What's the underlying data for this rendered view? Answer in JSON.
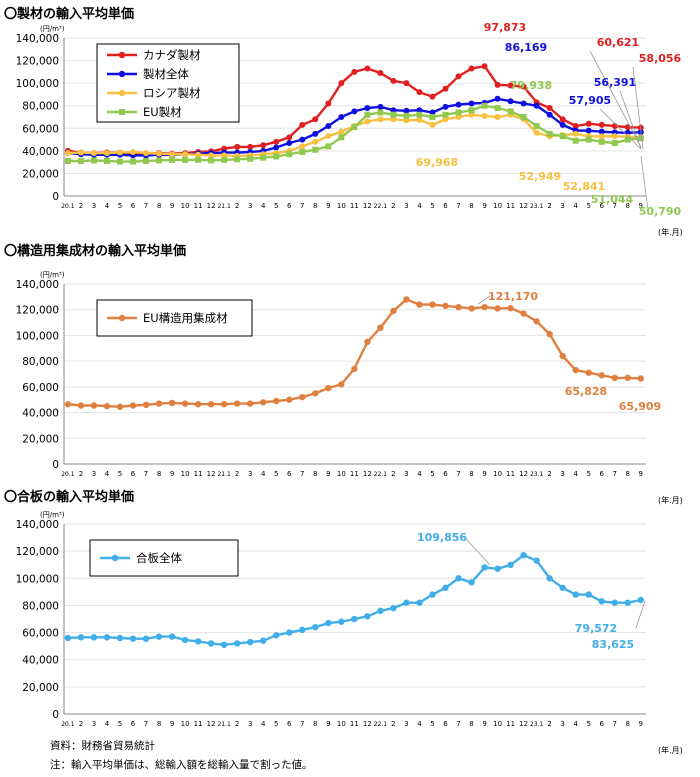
{
  "charts": [
    {
      "title": "〇製材の輸入平均単価"
    },
    {
      "title": "〇構造用集成材の輸入平均単価"
    },
    {
      "title": "〇合板の輸入平均単価"
    }
  ],
  "notes": {
    "source": "資料：財務省貿易統計",
    "note": "注：輸入平均単価は、総輸入額を総輸入量で割った値。"
  },
  "chart_data": [
    {
      "type": "line",
      "title": "〇製材の輸入平均単価",
      "ylabel": "(円/m³)",
      "xlabel": "(年.月)",
      "ylim": [
        0,
        140000
      ],
      "ytick_step": 20000,
      "categories": [
        "20.1",
        "2",
        "3",
        "4",
        "5",
        "6",
        "7",
        "8",
        "9",
        "10",
        "11",
        "12",
        "21.1",
        "2",
        "3",
        "4",
        "5",
        "6",
        "7",
        "8",
        "9",
        "10",
        "11",
        "12",
        "22.1",
        "2",
        "3",
        "4",
        "5",
        "6",
        "7",
        "8",
        "9",
        "10",
        "11",
        "12",
        "23.1",
        "2",
        "3",
        "4",
        "5",
        "6",
        "7",
        "8",
        "9"
      ],
      "legend_position": "top-left",
      "series": [
        {
          "name": "カナダ製材",
          "color": "#e02020",
          "values": [
            40000,
            38500,
            38000,
            38500,
            38500,
            37000,
            37500,
            38000,
            37500,
            38000,
            39000,
            39500,
            42000,
            43500,
            43500,
            45000,
            48000,
            52000,
            63000,
            68000,
            82000,
            100000,
            110000,
            113000,
            109000,
            102000,
            100000,
            92000,
            88000,
            95000,
            106000,
            113000,
            115000,
            98500,
            97873,
            97000,
            83000,
            78000,
            68000,
            62000,
            64000,
            63000,
            62000,
            61000,
            60621
          ]
        },
        {
          "name": "製材全体",
          "color": "#1010e0",
          "values": [
            38000,
            37000,
            36500,
            36500,
            36500,
            36000,
            36000,
            36500,
            36500,
            37000,
            37500,
            38000,
            38500,
            38500,
            39000,
            40000,
            43000,
            47000,
            50000,
            55000,
            62000,
            70000,
            75000,
            78000,
            79000,
            76000,
            75500,
            76000,
            74000,
            79000,
            81000,
            82000,
            82500,
            86169,
            84000,
            82000,
            80000,
            72000,
            63000,
            58000,
            57905,
            57000,
            56391,
            56000,
            56500
          ]
        },
        {
          "name": "ロシア製材",
          "color": "#f8c040",
          "values": [
            38000,
            38500,
            38000,
            38000,
            38500,
            39000,
            38000,
            37500,
            37000,
            37000,
            36500,
            36000,
            36000,
            35500,
            36000,
            37000,
            38000,
            40000,
            44000,
            48000,
            53000,
            57000,
            62000,
            66000,
            68000,
            68000,
            67000,
            67500,
            63000,
            68000,
            69968,
            72000,
            71000,
            70000,
            72000,
            68000,
            56000,
            52949,
            54000,
            55000,
            53000,
            52841,
            53000,
            52500,
            52000
          ]
        },
        {
          "name": "EU製材",
          "color": "#90c850",
          "values": [
            31000,
            31000,
            31500,
            31000,
            30500,
            30500,
            31000,
            31500,
            32000,
            32000,
            32000,
            31500,
            32000,
            32500,
            33000,
            34000,
            35000,
            37000,
            39000,
            41000,
            44000,
            52000,
            61000,
            72000,
            74000,
            72000,
            71000,
            72000,
            70000,
            72000,
            74000,
            76000,
            79938,
            78000,
            75000,
            70000,
            62000,
            55000,
            53000,
            49000,
            50000,
            48000,
            47000,
            50000,
            51044
          ]
        }
      ],
      "annotations": [
        {
          "text": "97,873",
          "color": "#e02020"
        },
        {
          "text": "86,169",
          "color": "#1010e0"
        },
        {
          "text": "79,938",
          "color": "#90c850"
        },
        {
          "text": "69,968",
          "color": "#f8c040"
        },
        {
          "text": "60,621",
          "color": "#e02020"
        },
        {
          "text": "58,056",
          "color": "#e02020"
        },
        {
          "text": "56,391",
          "color": "#1010e0"
        },
        {
          "text": "57,905",
          "color": "#1010e0"
        },
        {
          "text": "52,949",
          "color": "#f8c040"
        },
        {
          "text": "52,841",
          "color": "#f8c040"
        },
        {
          "text": "51,044",
          "color": "#90c850"
        },
        {
          "text": "50,790",
          "color": "#90c850"
        }
      ]
    },
    {
      "type": "line",
      "title": "〇構造用集成材の輸入平均単価",
      "ylabel": "(円/m³)",
      "xlabel": "(年.月)",
      "ylim": [
        0,
        140000
      ],
      "ytick_step": 20000,
      "categories": [
        "20.1",
        "2",
        "3",
        "4",
        "5",
        "6",
        "7",
        "8",
        "9",
        "10",
        "11",
        "12",
        "21.1",
        "2",
        "3",
        "4",
        "5",
        "6",
        "7",
        "8",
        "9",
        "10",
        "11",
        "12",
        "22.1",
        "2",
        "3",
        "4",
        "5",
        "6",
        "7",
        "8",
        "9",
        "10",
        "11",
        "12",
        "23.1",
        "2",
        "3",
        "4",
        "5",
        "6",
        "7",
        "8",
        "9"
      ],
      "legend_position": "top-left",
      "series": [
        {
          "name": "EU構造用集成材",
          "color": "#e08040",
          "values": [
            46500,
            45500,
            45500,
            45000,
            44500,
            45500,
            46000,
            47000,
            47500,
            47000,
            46500,
            46500,
            46500,
            47000,
            47000,
            48000,
            49000,
            50000,
            52000,
            55000,
            59000,
            62000,
            74000,
            95000,
            106000,
            119000,
            128000,
            124000,
            124000,
            123000,
            122000,
            121000,
            122000,
            121000,
            121170,
            117000,
            111000,
            101000,
            84000,
            73000,
            71000,
            69000,
            67000,
            67000,
            66500
          ]
        }
      ],
      "annotations": [
        {
          "text": "121,170",
          "color": "#e08040"
        },
        {
          "text": "65,828",
          "color": "#e08040"
        },
        {
          "text": "65,909",
          "color": "#e08040"
        }
      ]
    },
    {
      "type": "line",
      "title": "〇合板の輸入平均単価",
      "ylabel": "(円/m³)",
      "xlabel": "(年.月)",
      "ylim": [
        0,
        140000
      ],
      "ytick_step": 20000,
      "categories": [
        "20.1",
        "2",
        "3",
        "4",
        "5",
        "6",
        "7",
        "8",
        "9",
        "10",
        "11",
        "12",
        "21.1",
        "2",
        "3",
        "4",
        "5",
        "6",
        "7",
        "8",
        "9",
        "10",
        "11",
        "12",
        "22.1",
        "2",
        "3",
        "4",
        "5",
        "6",
        "7",
        "8",
        "9",
        "10",
        "11",
        "12",
        "23.1",
        "2",
        "3",
        "4",
        "5",
        "6",
        "7",
        "8",
        "9"
      ],
      "legend_position": "top-left",
      "series": [
        {
          "name": "合板全体",
          "color": "#40aee8",
          "values": [
            56000,
            56500,
            56500,
            56500,
            56000,
            55500,
            55500,
            57000,
            57000,
            54500,
            53500,
            52000,
            51000,
            52000,
            53000,
            54000,
            58000,
            60000,
            62000,
            64000,
            67000,
            68000,
            70000,
            72000,
            76000,
            78000,
            82000,
            82000,
            88000,
            93000,
            100000,
            97000,
            108000,
            107000,
            109856,
            117000,
            113000,
            100000,
            93000,
            88000,
            88000,
            83000,
            82000,
            82000,
            84000
          ]
        }
      ],
      "annotations": [
        {
          "text": "109,856",
          "color": "#40aee8"
        },
        {
          "text": "79,572",
          "color": "#40aee8"
        },
        {
          "text": "83,625",
          "color": "#40aee8"
        }
      ]
    }
  ]
}
